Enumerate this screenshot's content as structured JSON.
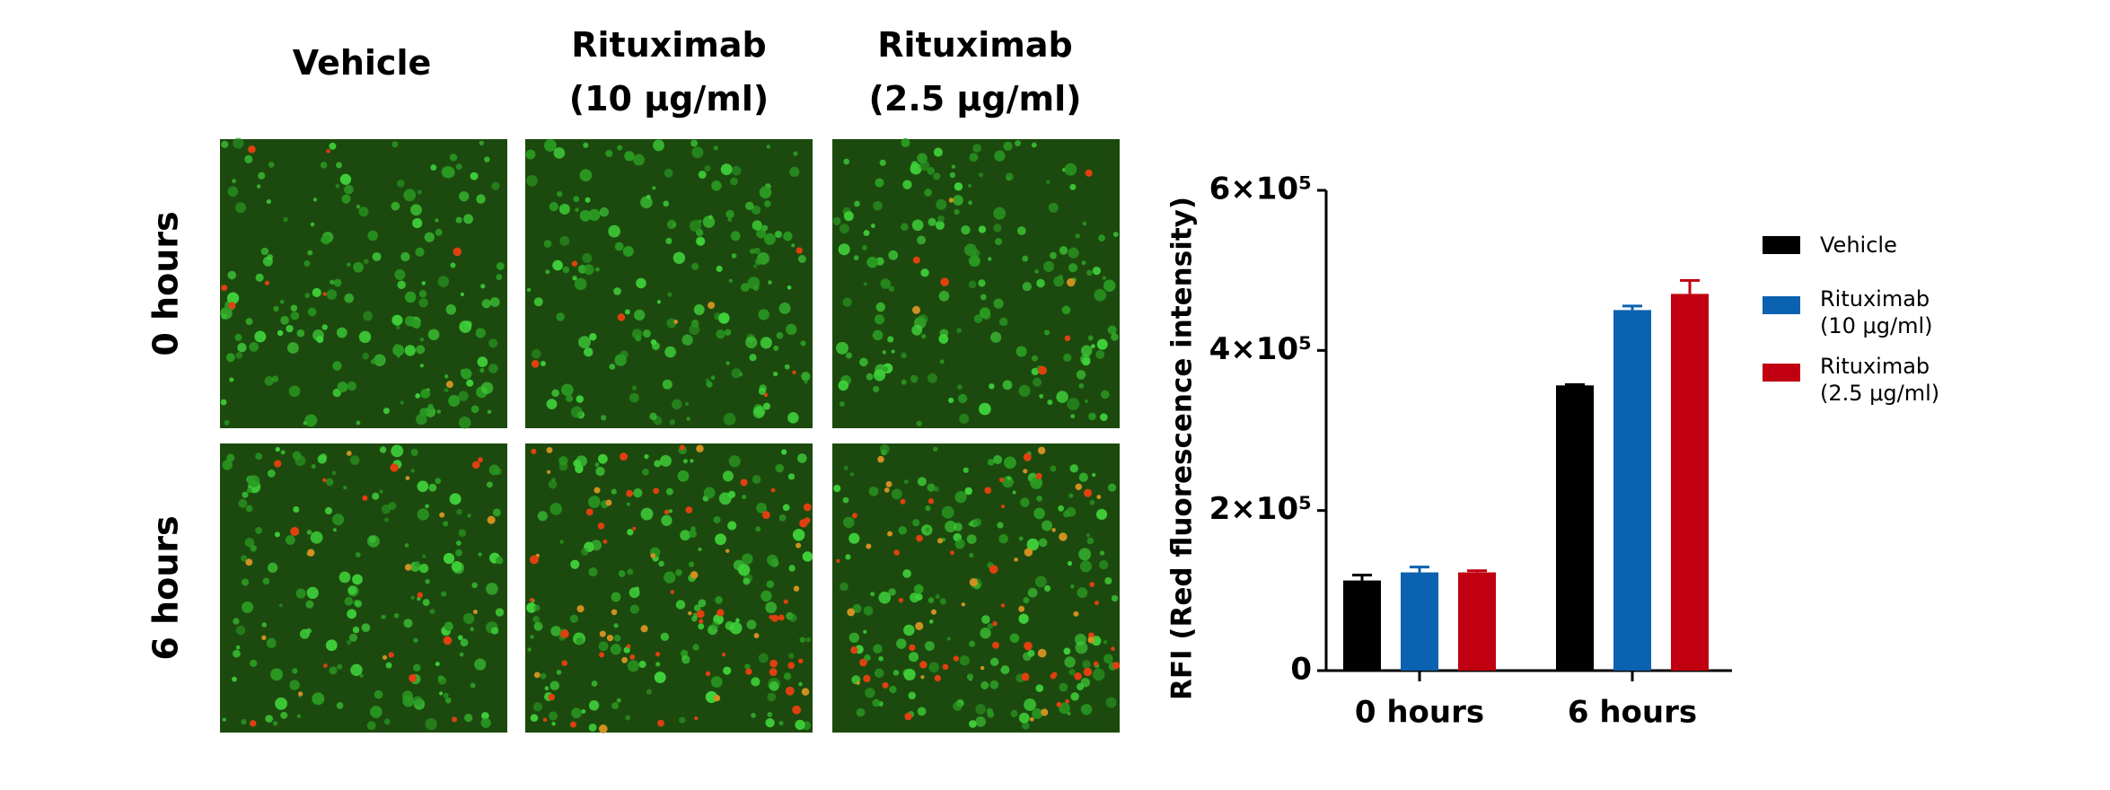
{
  "image_grid": {
    "columns": [
      "Vehicle",
      "Rituximab\n(10 μg/ml)",
      "Rituximab\n(2.5 μg/ml)"
    ],
    "rows": [
      "0 hours",
      "6 hours"
    ]
  },
  "chart_data": {
    "type": "bar",
    "y_label": "RFI  (Red fluorescence intensity)",
    "categories": [
      "0 hours",
      "6 hours"
    ],
    "series": [
      {
        "name": "Vehicle",
        "color": "#000000",
        "values": [
          112600,
          356300
        ],
        "errors": [
          6700,
          1000
        ]
      },
      {
        "name": "Rituximab\n(10 μg/ml)",
        "color": "#0a62b0",
        "values": [
          122700,
          450400
        ],
        "errors": [
          6700,
          5000
        ]
      },
      {
        "name": "Rituximab\n(2.5 μg/ml)",
        "color": "#c00010",
        "values": [
          122700,
          470600
        ],
        "errors": [
          2000,
          16800
        ]
      }
    ],
    "ylim": [
      0,
      600000
    ],
    "yticks": [
      0,
      {
        "value": 200000,
        "label": "2×10⁵"
      },
      {
        "value": 400000,
        "label": "4×10⁵"
      },
      {
        "value": 600000,
        "label": "6×10⁵"
      }
    ],
    "legend": "right"
  }
}
